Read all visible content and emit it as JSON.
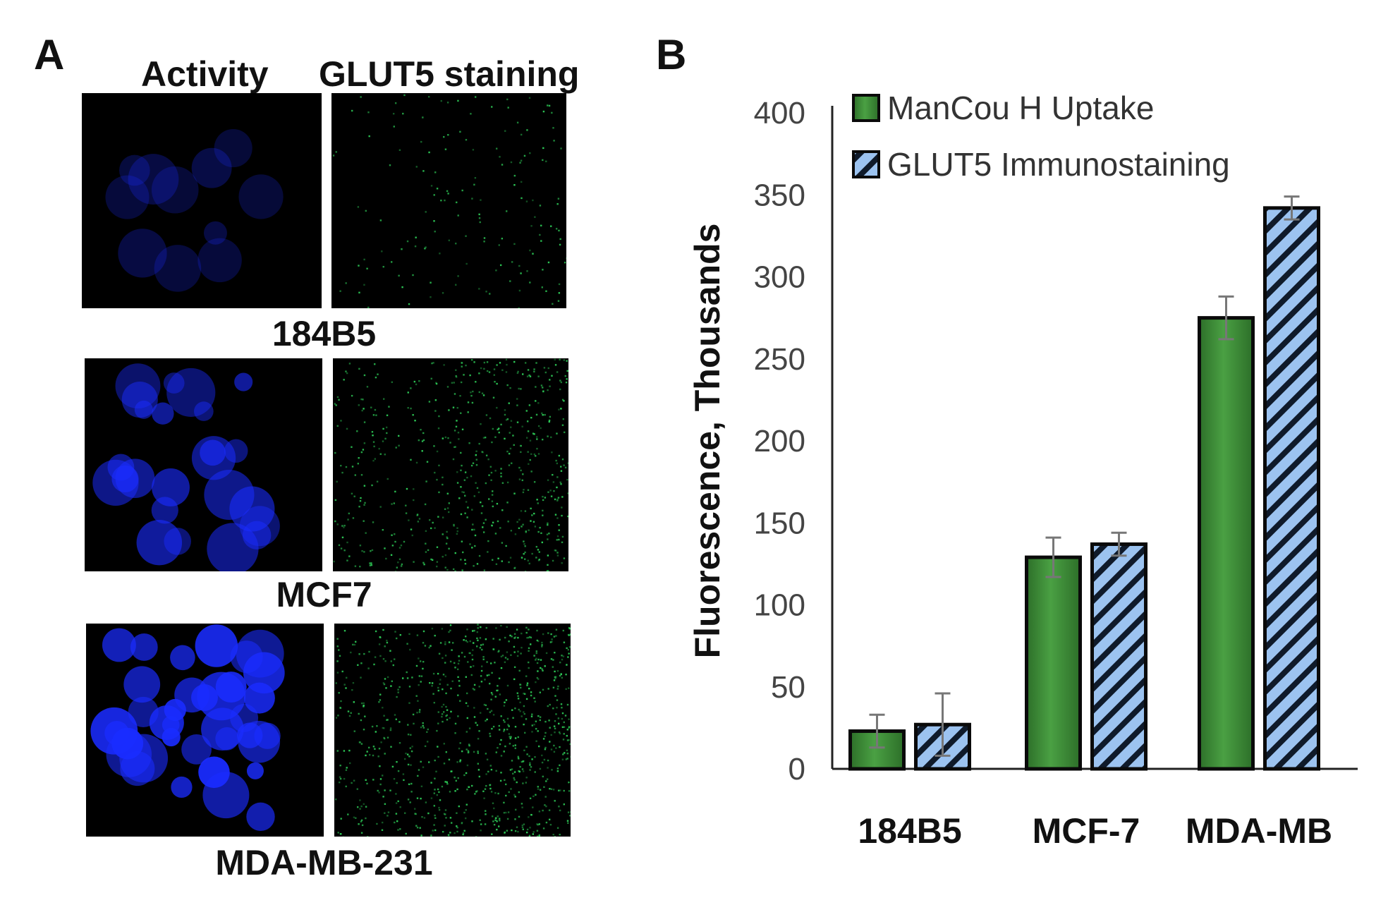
{
  "panel_a": {
    "letter": "A",
    "column_headers": [
      "Activity",
      "GLUT5 staining"
    ],
    "rows": [
      {
        "label": "184B5",
        "activity_intensity": 0.15,
        "glut5_intensity": 0.1
      },
      {
        "label": "MCF7",
        "activity_intensity": 0.6,
        "glut5_intensity": 0.55
      },
      {
        "label": "MDA-MB-231",
        "activity_intensity": 1.0,
        "glut5_intensity": 0.85
      }
    ],
    "colors": {
      "activity": "#1a2cff",
      "glut5": "#2fd35a",
      "background": "#000000"
    }
  },
  "panel_b": {
    "letter": "B"
  },
  "chart_data": {
    "type": "bar",
    "title": "",
    "xlabel": "",
    "ylabel": "Fluorescence, Thousands",
    "categories": [
      "184B5",
      "MCF-7",
      "MDA-MB"
    ],
    "ylim": [
      0,
      400
    ],
    "yticks": [
      0,
      50,
      100,
      150,
      200,
      250,
      300,
      350,
      400
    ],
    "legend_position": "top-left",
    "grid": false,
    "series": [
      {
        "name": "ManCou H Uptake",
        "values": [
          23,
          129,
          275
        ],
        "errors": [
          10,
          12,
          13
        ],
        "color": "#3a8a34",
        "pattern": "solid"
      },
      {
        "name": "GLUT5 Immunostaining",
        "values": [
          27,
          137,
          342
        ],
        "errors": [
          19,
          7,
          7
        ],
        "color": "#9cc3f0",
        "pattern": "hatched"
      }
    ]
  }
}
